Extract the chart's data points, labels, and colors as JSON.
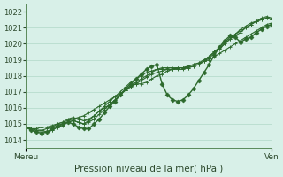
{
  "title": "Pression niveau de la mer( hPa )",
  "xlabel_left": "Mereu",
  "xlabel_right": "Ven",
  "ylim": [
    1013.5,
    1022.5
  ],
  "yticks": [
    1014,
    1015,
    1016,
    1017,
    1018,
    1019,
    1020,
    1021,
    1022
  ],
  "background_color": "#d8f0e8",
  "grid_color": "#b0d8c8",
  "line_color": "#2d6a2d",
  "n_points": 48,
  "series": {
    "line1": [
      1014.8,
      1014.7,
      1014.7,
      1014.8,
      1014.8,
      1014.9,
      1015.0,
      1015.1,
      1015.2,
      1015.3,
      1015.4,
      1015.5,
      1015.7,
      1015.9,
      1016.1,
      1016.3,
      1016.5,
      1016.7,
      1016.9,
      1017.1,
      1017.3,
      1017.5,
      1017.7,
      1017.9,
      1018.1,
      1018.2,
      1018.3,
      1018.4,
      1018.4,
      1018.5,
      1018.5,
      1018.6,
      1018.7,
      1018.8,
      1018.9,
      1019.0,
      1019.2,
      1019.4,
      1019.6,
      1019.8,
      1020.0,
      1020.2,
      1020.4,
      1020.6,
      1020.8,
      1021.0,
      1021.2,
      1021.3
    ],
    "line2": [
      1014.8,
      1014.7,
      1014.6,
      1014.6,
      1014.7,
      1014.8,
      1015.0,
      1015.1,
      1015.3,
      1015.4,
      1015.3,
      1015.2,
      1015.3,
      1015.5,
      1015.8,
      1016.0,
      1016.2,
      1016.5,
      1016.8,
      1017.1,
      1017.4,
      1017.5,
      1017.5,
      1017.6,
      1017.8,
      1018.0,
      1018.1,
      1018.3,
      1018.4,
      1018.5,
      1018.5,
      1018.6,
      1018.7,
      1018.8,
      1019.0,
      1019.2,
      1019.5,
      1019.7,
      1020.0,
      1020.3,
      1020.5,
      1020.7,
      1021.0,
      1021.2,
      1021.4,
      1021.5,
      1021.6,
      1021.5
    ],
    "line3": [
      1014.8,
      1014.6,
      1014.5,
      1014.5,
      1014.5,
      1014.6,
      1014.8,
      1014.9,
      1015.1,
      1015.2,
      1015.1,
      1015.0,
      1015.1,
      1015.3,
      1015.6,
      1015.9,
      1016.2,
      1016.5,
      1016.8,
      1017.1,
      1017.4,
      1017.6,
      1017.8,
      1018.0,
      1018.2,
      1018.4,
      1018.5,
      1018.5,
      1018.5,
      1018.5,
      1018.5,
      1018.5,
      1018.6,
      1018.7,
      1018.9,
      1019.1,
      1019.4,
      1019.7,
      1020.0,
      1020.3,
      1020.6,
      1020.9,
      1021.1,
      1021.3,
      1021.4,
      1021.5,
      1021.6,
      1021.5
    ],
    "line4": [
      1014.8,
      1014.7,
      1014.6,
      1014.6,
      1014.5,
      1014.6,
      1014.8,
      1015.0,
      1015.1,
      1015.2,
      1015.1,
      1015.0,
      1015.2,
      1015.5,
      1015.8,
      1016.1,
      1016.4,
      1016.7,
      1017.0,
      1017.3,
      1017.6,
      1017.8,
      1018.0,
      1018.2,
      1018.3,
      1018.4,
      1018.4,
      1018.4,
      1018.4,
      1018.4,
      1018.4,
      1018.5,
      1018.6,
      1018.7,
      1018.9,
      1019.2,
      1019.5,
      1019.8,
      1020.1,
      1020.4,
      1020.6,
      1020.8,
      1021.0,
      1021.2,
      1021.4,
      1021.6,
      1021.7,
      1021.6
    ],
    "line5_obs": [
      1014.8,
      1014.6,
      1014.5,
      1014.4,
      1014.5,
      1014.7,
      1014.9,
      1015.0,
      1015.1,
      1015.0,
      1014.8,
      1014.7,
      1014.7,
      1015.0,
      1015.3,
      1015.7,
      1016.1,
      1016.4,
      1016.8,
      1017.2,
      1017.5,
      1017.8,
      1018.1,
      1018.4,
      1018.6,
      1018.7,
      1017.5,
      1016.8,
      1016.5,
      1016.4,
      1016.5,
      1016.8,
      1017.2,
      1017.7,
      1018.2,
      1018.7,
      1019.3,
      1019.8,
      1020.2,
      1020.5,
      1020.4,
      1020.1,
      1020.3,
      1020.4,
      1020.7,
      1020.9,
      1021.1,
      1021.2
    ]
  }
}
